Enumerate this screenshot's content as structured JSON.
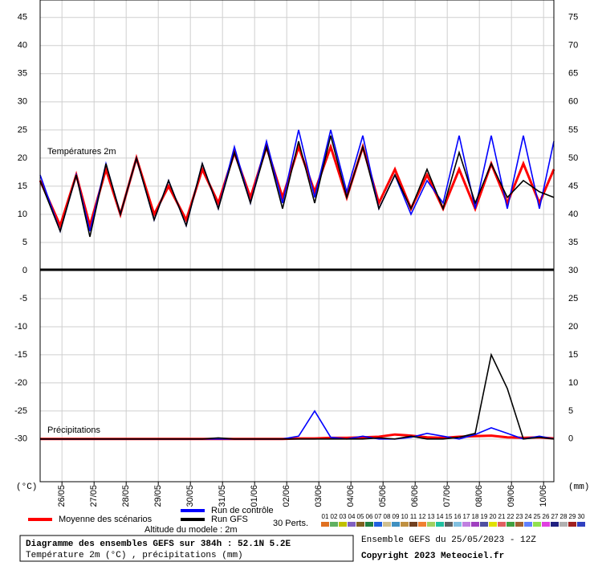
{
  "chart_data": [
    {
      "type": "line",
      "title": "Températures 2m",
      "x": [
        0,
        0.625,
        1.125,
        1.55,
        2.05,
        2.5,
        3,
        3.55,
        4,
        4.55,
        5.05,
        5.55,
        6.05,
        6.55,
        7.05,
        7.55,
        8.05,
        8.55,
        9.05,
        9.55,
        10.05,
        10.55,
        11.05,
        11.55,
        12.05,
        12.55,
        13.05,
        13.55,
        14.05,
        14.55,
        15.05,
        15.55,
        16
      ],
      "xlim": [
        0,
        16
      ],
      "ylim": [
        0,
        48.1
      ],
      "y2lim": [
        30,
        78.1
      ],
      "yticks": [
        5,
        10,
        15,
        20,
        25,
        30,
        35,
        40,
        45
      ],
      "y2ticks": [
        35,
        40,
        45,
        50,
        55,
        60,
        65,
        70,
        75
      ],
      "grid": true,
      "series": [
        {
          "name": "Moyenne des scénarios",
          "color": "#ff0000",
          "values": [
            16,
            8,
            17,
            8,
            18,
            10,
            20,
            10,
            15,
            9,
            18,
            12,
            21,
            13,
            22,
            13,
            22,
            14,
            22,
            13,
            22,
            12,
            18,
            11,
            17,
            11,
            18,
            11,
            19,
            12,
            19,
            12,
            18
          ]
        },
        {
          "name": "Run de contrôle",
          "color": "#0000ff",
          "values": [
            17,
            7,
            17,
            7,
            19,
            10,
            20,
            9,
            16,
            8,
            19,
            11,
            22,
            12,
            23,
            12,
            25,
            13,
            25,
            14,
            24,
            11,
            17,
            10,
            16,
            12,
            24,
            11,
            24,
            11,
            24,
            11,
            23
          ]
        },
        {
          "name": "Run GFS",
          "color": "#000000",
          "values": [
            16,
            7,
            17,
            6,
            19,
            10,
            20,
            9,
            16,
            8,
            19,
            11,
            21,
            12,
            22,
            11,
            23,
            12,
            24,
            13,
            22,
            11,
            17,
            11,
            18,
            11,
            21,
            12,
            19,
            13,
            16,
            14,
            13
          ]
        }
      ]
    },
    {
      "type": "line",
      "title": "Précipitations",
      "x": [
        0,
        0.625,
        1.125,
        1.55,
        2.05,
        2.5,
        3,
        3.55,
        4,
        4.55,
        5.05,
        5.55,
        6.05,
        6.55,
        7.05,
        7.55,
        8.05,
        8.55,
        9.05,
        9.55,
        10.05,
        10.55,
        11.05,
        11.55,
        12.05,
        12.55,
        13.05,
        13.55,
        14.05,
        14.55,
        15.05,
        15.55,
        16
      ],
      "xlim": [
        0,
        16
      ],
      "ylim": [
        -37.6,
        0
      ],
      "y2lim": [
        -7.6,
        30
      ],
      "yticks": [
        -30,
        -25,
        -20,
        -15,
        -10,
        -5,
        0
      ],
      "y2ticks": [
        0,
        5,
        10,
        15,
        20,
        25,
        30
      ],
      "grid": true,
      "xticks": [
        {
          "value": 0.68,
          "label": "26/05"
        },
        {
          "value": 1.68,
          "label": "27/05"
        },
        {
          "value": 2.68,
          "label": "28/05"
        },
        {
          "value": 3.68,
          "label": "29/05"
        },
        {
          "value": 4.68,
          "label": "30/05"
        },
        {
          "value": 5.68,
          "label": "31/05"
        },
        {
          "value": 6.68,
          "label": "01/06"
        },
        {
          "value": 7.68,
          "label": "02/06"
        },
        {
          "value": 8.68,
          "label": "03/06"
        },
        {
          "value": 9.68,
          "label": "04/06"
        },
        {
          "value": 10.68,
          "label": "05/06"
        },
        {
          "value": 11.68,
          "label": "06/06"
        },
        {
          "value": 12.68,
          "label": "07/06"
        },
        {
          "value": 13.68,
          "label": "08/06"
        },
        {
          "value": 14.68,
          "label": "09/06"
        },
        {
          "value": 15.68,
          "label": "10/06"
        }
      ],
      "series": [
        {
          "color": "#ff0000",
          "axis": "y2",
          "values": [
            0,
            0,
            0,
            0,
            0,
            0,
            0,
            0,
            0,
            0,
            0,
            0,
            0,
            0,
            0,
            0,
            0.1,
            0.1,
            0.2,
            0.2,
            0.3,
            0.4,
            0.8,
            0.6,
            0.3,
            0.2,
            0.4,
            0.5,
            0.6,
            0.3,
            0.2,
            0.3,
            0.1
          ]
        },
        {
          "color": "#0000ff",
          "axis": "y2",
          "values": [
            0,
            0,
            0,
            0,
            0,
            0,
            0,
            0,
            0,
            0,
            0,
            0,
            0,
            0,
            0,
            0,
            0.5,
            5,
            0.3,
            0,
            0.5,
            0,
            0,
            0.3,
            1,
            0.5,
            0,
            0.8,
            2,
            1,
            0,
            0.5,
            0
          ]
        },
        {
          "color": "#000000",
          "axis": "y2",
          "values": [
            0,
            0,
            0,
            0,
            0,
            0,
            0,
            0,
            0,
            0,
            0,
            0.2,
            0,
            0,
            0,
            0,
            0,
            0,
            0,
            0,
            0,
            0.2,
            0,
            0.5,
            0,
            0,
            0.3,
            1,
            15,
            9,
            0,
            0.3,
            0
          ]
        }
      ]
    }
  ],
  "axis_units": {
    "left": "(°C)",
    "right": "(mm)"
  },
  "legend_note": "Altitude du modele : 2m",
  "perturbations": {
    "label": "30 Perts.",
    "members": [
      {
        "name": "01",
        "color": "#e07020"
      },
      {
        "name": "02",
        "color": "#60b060"
      },
      {
        "name": "03",
        "color": "#c0c000"
      },
      {
        "name": "04",
        "color": "#8060c0"
      },
      {
        "name": "05",
        "color": "#806020"
      },
      {
        "name": "06",
        "color": "#208040"
      },
      {
        "name": "07",
        "color": "#2060e0"
      },
      {
        "name": "08",
        "color": "#d0c090"
      },
      {
        "name": "09",
        "color": "#4090c0"
      },
      {
        "name": "10",
        "color": "#c09040"
      },
      {
        "name": "11",
        "color": "#704020"
      },
      {
        "name": "12",
        "color": "#f08030"
      },
      {
        "name": "13",
        "color": "#a0d060"
      },
      {
        "name": "14",
        "color": "#20c0a0"
      },
      {
        "name": "15",
        "color": "#606060"
      },
      {
        "name": "16",
        "color": "#80c0e0"
      },
      {
        "name": "17",
        "color": "#c080e0"
      },
      {
        "name": "18",
        "color": "#a040c0"
      },
      {
        "name": "19",
        "color": "#5050a0"
      },
      {
        "name": "20",
        "color": "#e0e000"
      },
      {
        "name": "21",
        "color": "#e06060"
      },
      {
        "name": "22",
        "color": "#40a040"
      },
      {
        "name": "23",
        "color": "#a06030"
      },
      {
        "name": "24",
        "color": "#6080ff"
      },
      {
        "name": "25",
        "color": "#90e050"
      },
      {
        "name": "26",
        "color": "#e040e0"
      },
      {
        "name": "27",
        "color": "#202080"
      },
      {
        "name": "28",
        "color": "#b0b0b0"
      },
      {
        "name": "29",
        "color": "#a02020"
      },
      {
        "name": "30",
        "color": "#3040c0"
      }
    ]
  },
  "footer": {
    "title": "Diagramme des ensembles GEFS sur 384h : 52.1N 5.2E",
    "subtitle": "Température 2m (°C) , précipitations (mm)",
    "run": "Ensemble GEFS du 25/05/2023 - 12Z",
    "copyright": "Copyright 2023 Meteociel.fr"
  }
}
